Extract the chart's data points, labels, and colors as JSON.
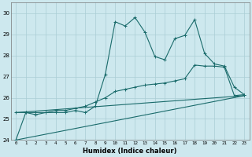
{
  "xlabel": "Humidex (Indice chaleur)",
  "bg_color": "#cde8ee",
  "grid_color": "#aacdd5",
  "line_color": "#1a6b6b",
  "x_ticks": [
    0,
    1,
    2,
    3,
    4,
    5,
    6,
    7,
    8,
    9,
    10,
    11,
    12,
    13,
    14,
    15,
    16,
    17,
    18,
    19,
    20,
    21,
    22,
    23
  ],
  "ylim": [
    24,
    30.5
  ],
  "xlim": [
    -0.5,
    23.5
  ],
  "yticks": [
    24,
    25,
    26,
    27,
    28,
    29,
    30
  ],
  "line1_x": [
    0,
    1,
    2,
    3,
    4,
    5,
    6,
    7,
    8,
    9,
    10,
    11,
    12,
    13,
    14,
    15,
    16,
    17,
    18,
    19,
    20,
    21,
    22,
    23
  ],
  "line1_y": [
    24.0,
    25.3,
    25.2,
    25.3,
    25.3,
    25.3,
    25.4,
    25.3,
    25.6,
    27.1,
    29.6,
    29.4,
    29.8,
    29.1,
    27.95,
    27.8,
    28.8,
    28.95,
    29.7,
    28.1,
    27.6,
    27.5,
    26.5,
    26.15
  ],
  "line2_x": [
    0,
    1,
    2,
    3,
    4,
    5,
    6,
    7,
    8,
    9,
    10,
    11,
    12,
    13,
    14,
    15,
    16,
    17,
    18,
    19,
    20,
    21,
    22,
    23
  ],
  "line2_y": [
    25.3,
    25.3,
    25.3,
    25.3,
    25.4,
    25.4,
    25.5,
    25.6,
    25.8,
    26.0,
    26.3,
    26.4,
    26.5,
    26.6,
    26.65,
    26.7,
    26.8,
    26.9,
    27.55,
    27.5,
    27.5,
    27.45,
    26.1,
    26.15
  ],
  "line3_x": [
    0,
    23
  ],
  "line3_y": [
    24.0,
    26.1
  ],
  "line4_x": [
    0,
    23
  ],
  "line4_y": [
    25.3,
    26.1
  ]
}
